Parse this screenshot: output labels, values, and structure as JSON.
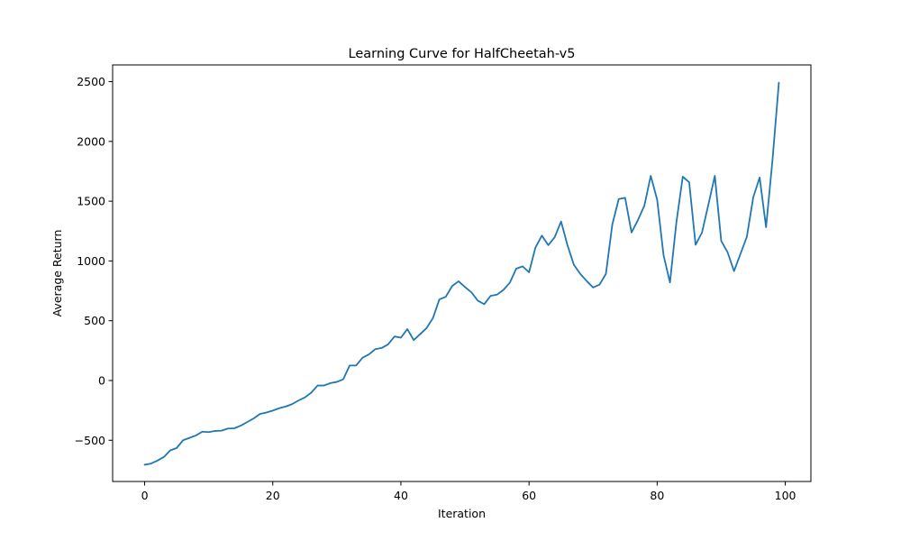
{
  "chart_data": {
    "type": "line",
    "title": "Learning Curve for HalfCheetah-v5",
    "xlabel": "Iteration",
    "ylabel": "Average Return",
    "xlim": [
      -5,
      104
    ],
    "ylim": [
      -845,
      2640
    ],
    "xticks": [
      0,
      20,
      40,
      60,
      80,
      100
    ],
    "yticks": [
      -500,
      0,
      500,
      1000,
      1500,
      2000,
      2500
    ],
    "grid": false,
    "series": [
      {
        "color": "#1f77b4",
        "x": [
          0,
          1,
          2,
          3,
          4,
          5,
          6,
          7,
          8,
          9,
          10,
          11,
          12,
          13,
          14,
          15,
          16,
          17,
          18,
          19,
          20,
          21,
          22,
          23,
          24,
          25,
          26,
          27,
          28,
          29,
          30,
          31,
          32,
          33,
          34,
          35,
          36,
          37,
          38,
          39,
          40,
          41,
          42,
          43,
          44,
          45,
          46,
          47,
          48,
          49,
          50,
          51,
          52,
          53,
          54,
          55,
          56,
          57,
          58,
          59,
          60,
          61,
          62,
          63,
          64,
          65,
          66,
          67,
          68,
          69,
          70,
          71,
          72,
          73,
          74,
          75,
          76,
          77,
          78,
          79,
          80,
          81,
          82,
          83,
          84,
          85,
          86,
          87,
          88,
          89,
          90,
          91,
          92,
          93,
          94,
          95,
          96,
          97,
          98,
          99
        ],
        "y": [
          -705,
          -695,
          -670,
          -640,
          -585,
          -565,
          -500,
          -480,
          -460,
          -428,
          -432,
          -422,
          -420,
          -402,
          -400,
          -378,
          -348,
          -318,
          -280,
          -268,
          -252,
          -232,
          -218,
          -198,
          -168,
          -142,
          -102,
          -42,
          -42,
          -22,
          -12,
          10,
          125,
          125,
          190,
          218,
          262,
          272,
          302,
          368,
          358,
          430,
          338,
          388,
          438,
          522,
          678,
          700,
          790,
          830,
          782,
          738,
          668,
          638,
          708,
          718,
          758,
          818,
          935,
          955,
          905,
          1112,
          1212,
          1132,
          1198,
          1330,
          1132,
          968,
          892,
          832,
          778,
          802,
          892,
          1305,
          1518,
          1528,
          1238,
          1342,
          1462,
          1712,
          1512,
          1048,
          820,
          1322,
          1705,
          1658,
          1135,
          1238,
          1472,
          1712,
          1168,
          1072,
          915,
          1058,
          1202,
          1532,
          1698,
          1282,
          1842,
          2492
        ]
      }
    ]
  }
}
